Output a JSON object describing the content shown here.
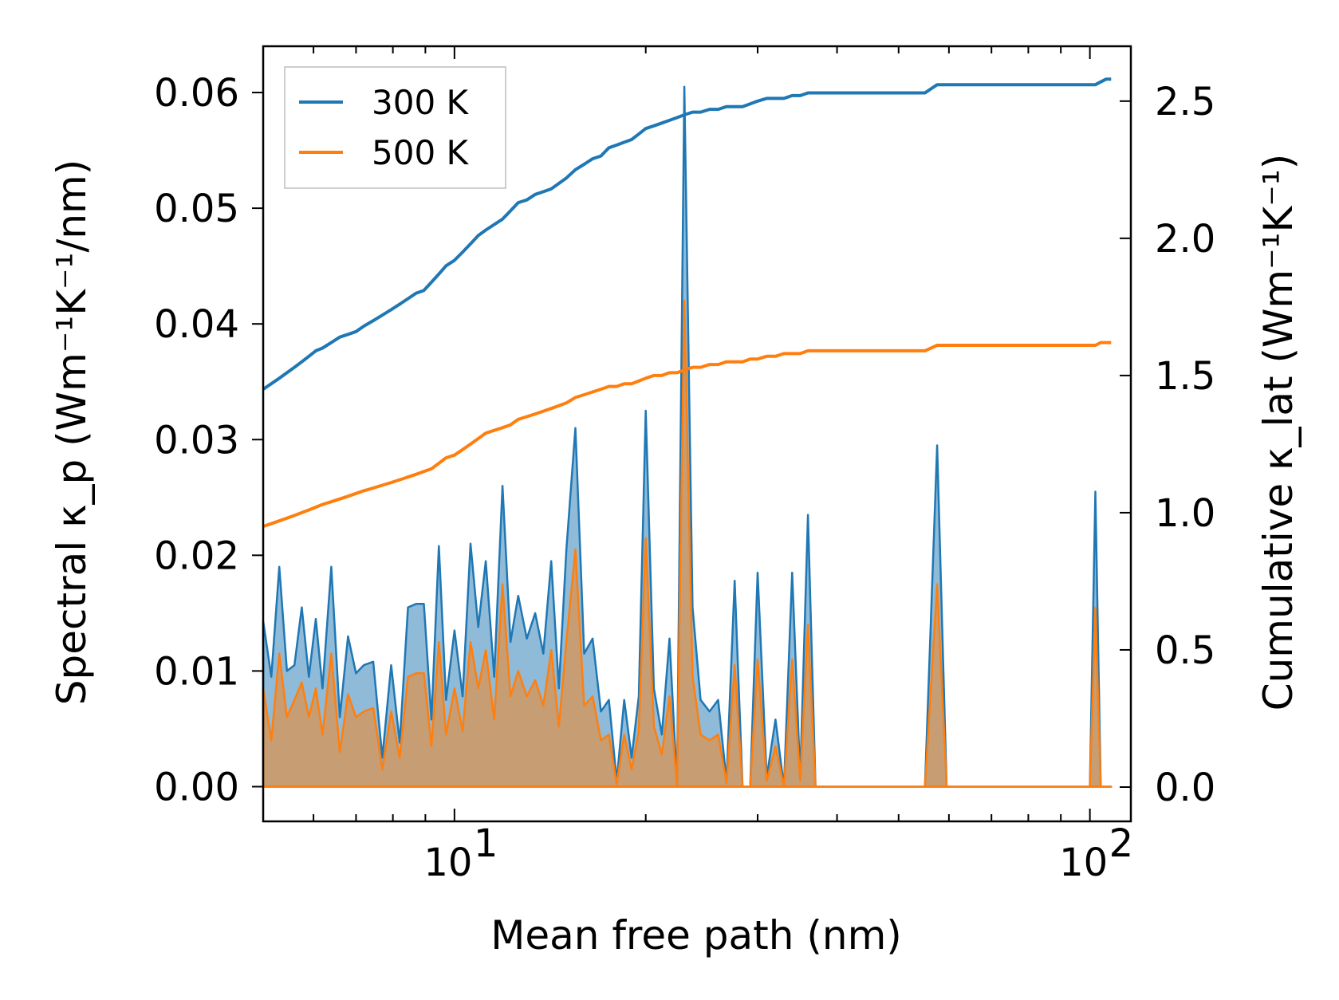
{
  "chart_data": {
    "type": "area+line",
    "xscale": "log",
    "xlim": [
      5,
      116
    ],
    "xlabel": "Mean free path (nm)",
    "ylabel_left": "Spectral κ_p (Wm⁻¹K⁻¹/nm)",
    "ylabel_right": "Cumulative κ_lat (Wm⁻¹K⁻¹)",
    "ylim_left": [
      -0.003,
      0.064
    ],
    "ylim_right": [
      -0.125,
      2.7
    ],
    "left_ticks": [
      "0.00",
      "0.01",
      "0.02",
      "0.03",
      "0.04",
      "0.05",
      "0.06"
    ],
    "right_ticks": [
      "0.0",
      "0.5",
      "1.0",
      "1.5",
      "2.0",
      "2.5"
    ],
    "x_ticks": [
      {
        "base": "10",
        "exp": "1"
      },
      {
        "base": "10",
        "exp": "2"
      }
    ],
    "legend": {
      "position": "top-left",
      "entries": [
        {
          "label": "300 K",
          "color": "#1f77b4"
        },
        {
          "label": "500 K",
          "color": "#ff7f0e"
        }
      ]
    },
    "x": [
      5.0,
      5.15,
      5.3,
      5.45,
      5.6,
      5.75,
      5.9,
      6.05,
      6.2,
      6.4,
      6.6,
      6.8,
      7.0,
      7.2,
      7.45,
      7.7,
      7.95,
      8.2,
      8.45,
      8.7,
      8.95,
      9.2,
      9.45,
      9.7,
      10.0,
      10.3,
      10.6,
      10.9,
      11.2,
      11.55,
      11.9,
      12.25,
      12.6,
      13.0,
      13.4,
      13.8,
      14.2,
      14.6,
      15.0,
      15.5,
      16.0,
      16.5,
      17.0,
      17.5,
      18.0,
      18.5,
      19.0,
      19.5,
      20.0,
      20.6,
      21.2,
      21.8,
      22.4,
      23.0,
      23.7,
      24.4,
      25.2,
      26.0,
      26.8,
      27.6,
      28.4,
      29.2,
      30.0,
      31.0,
      32.0,
      33.0,
      34.0,
      35.0,
      36.0,
      37.0,
      38.5,
      40.0,
      45.0,
      50.0,
      55.0,
      57.5,
      59.5,
      61.0,
      63.0,
      70.0,
      80.0,
      90.0,
      100.0,
      102.0,
      104.0,
      106.0,
      108.0
    ],
    "series": [
      {
        "name": "300 K",
        "color": "#1f77b4",
        "spectral": [
          0.0143,
          0.0095,
          0.019,
          0.01,
          0.0105,
          0.0155,
          0.0095,
          0.0145,
          0.0085,
          0.019,
          0.006,
          0.013,
          0.0098,
          0.0105,
          0.0108,
          0.0025,
          0.0105,
          0.0038,
          0.0155,
          0.0158,
          0.0158,
          0.0058,
          0.0208,
          0.0075,
          0.0135,
          0.0078,
          0.021,
          0.0138,
          0.0195,
          0.0095,
          0.026,
          0.0125,
          0.0165,
          0.0128,
          0.015,
          0.0115,
          0.0195,
          0.0085,
          0.0205,
          0.031,
          0.0115,
          0.0128,
          0.0065,
          0.0075,
          0.0005,
          0.0075,
          0.0025,
          0.0078,
          0.0325,
          0.0085,
          0.0045,
          0.0128,
          0.0002,
          0.0605,
          0.0155,
          0.0075,
          0.0065,
          0.0075,
          0.0005,
          0.0178,
          0.0,
          0.0,
          0.0185,
          0.0008,
          0.0058,
          0.0,
          0.0185,
          0.0008,
          0.0235,
          0.0,
          0.0,
          0.0,
          0.0,
          0.0,
          0.0,
          0.0295,
          0.0,
          0.0,
          0.0,
          0.0,
          0.0,
          0.0,
          0.0,
          0.0255,
          0.0,
          0.0,
          0.0
        ],
        "cumulative": [
          1.45,
          1.47,
          1.49,
          1.51,
          1.53,
          1.55,
          1.57,
          1.59,
          1.6,
          1.62,
          1.64,
          1.65,
          1.66,
          1.68,
          1.7,
          1.72,
          1.74,
          1.76,
          1.78,
          1.8,
          1.81,
          1.84,
          1.87,
          1.9,
          1.92,
          1.95,
          1.98,
          2.01,
          2.03,
          2.05,
          2.07,
          2.1,
          2.13,
          2.14,
          2.16,
          2.17,
          2.18,
          2.2,
          2.22,
          2.25,
          2.27,
          2.29,
          2.3,
          2.33,
          2.34,
          2.35,
          2.36,
          2.38,
          2.4,
          2.41,
          2.42,
          2.43,
          2.44,
          2.45,
          2.46,
          2.46,
          2.47,
          2.47,
          2.48,
          2.48,
          2.48,
          2.49,
          2.5,
          2.51,
          2.51,
          2.51,
          2.52,
          2.52,
          2.53,
          2.53,
          2.53,
          2.53,
          2.53,
          2.53,
          2.53,
          2.56,
          2.56,
          2.56,
          2.56,
          2.56,
          2.56,
          2.56,
          2.56,
          2.56,
          2.57,
          2.58,
          2.58
        ]
      },
      {
        "name": "500 K",
        "color": "#ff7f0e",
        "spectral": [
          0.0085,
          0.004,
          0.0115,
          0.006,
          0.0075,
          0.009,
          0.006,
          0.0085,
          0.0045,
          0.0115,
          0.003,
          0.008,
          0.006,
          0.0065,
          0.0068,
          0.0015,
          0.0065,
          0.0025,
          0.0095,
          0.0098,
          0.0098,
          0.0035,
          0.0125,
          0.0045,
          0.0085,
          0.0048,
          0.0125,
          0.0085,
          0.0118,
          0.0058,
          0.0175,
          0.0078,
          0.01,
          0.0078,
          0.0092,
          0.007,
          0.0118,
          0.0052,
          0.0125,
          0.0205,
          0.007,
          0.0078,
          0.004,
          0.0045,
          0.0002,
          0.0045,
          0.0015,
          0.0048,
          0.0215,
          0.0052,
          0.0028,
          0.0078,
          0.0001,
          0.042,
          0.0095,
          0.0045,
          0.004,
          0.0045,
          0.0003,
          0.0105,
          0.0,
          0.0,
          0.011,
          0.0005,
          0.0035,
          0.0,
          0.011,
          0.0005,
          0.014,
          0.0,
          0.0,
          0.0,
          0.0,
          0.0,
          0.0,
          0.0175,
          0.0,
          0.0,
          0.0,
          0.0,
          0.0,
          0.0,
          0.0,
          0.0155,
          0.0,
          0.0,
          0.0
        ],
        "cumulative": [
          0.95,
          0.96,
          0.97,
          0.98,
          0.99,
          1.0,
          1.01,
          1.02,
          1.03,
          1.04,
          1.05,
          1.06,
          1.07,
          1.08,
          1.09,
          1.1,
          1.11,
          1.12,
          1.13,
          1.14,
          1.15,
          1.16,
          1.18,
          1.2,
          1.21,
          1.23,
          1.25,
          1.27,
          1.29,
          1.3,
          1.31,
          1.32,
          1.34,
          1.35,
          1.36,
          1.37,
          1.38,
          1.39,
          1.4,
          1.42,
          1.43,
          1.44,
          1.45,
          1.46,
          1.46,
          1.47,
          1.47,
          1.48,
          1.49,
          1.5,
          1.5,
          1.51,
          1.51,
          1.52,
          1.53,
          1.53,
          1.54,
          1.54,
          1.55,
          1.55,
          1.55,
          1.56,
          1.56,
          1.57,
          1.57,
          1.58,
          1.58,
          1.58,
          1.59,
          1.59,
          1.59,
          1.59,
          1.59,
          1.59,
          1.59,
          1.61,
          1.61,
          1.61,
          1.61,
          1.61,
          1.61,
          1.61,
          1.61,
          1.61,
          1.62,
          1.62,
          1.62
        ]
      }
    ]
  }
}
